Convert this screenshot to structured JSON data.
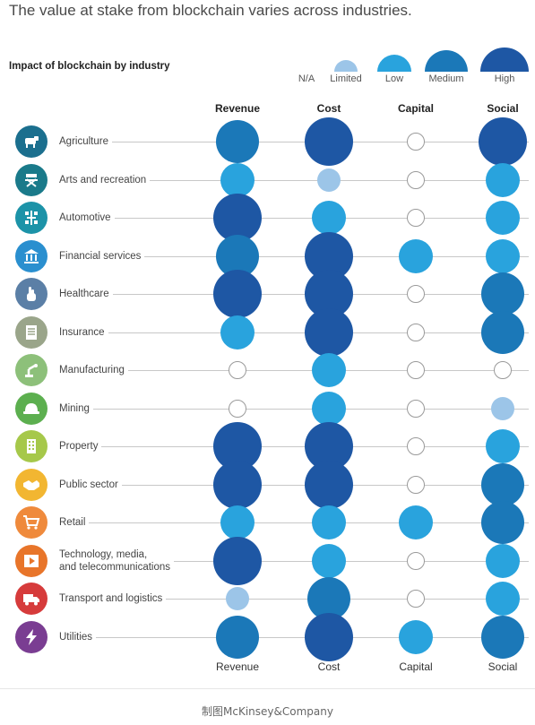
{
  "title": "The value at stake from blockchain varies across industries.",
  "subtitle": "Impact of blockchain by industry",
  "legend": [
    {
      "label": "N/A",
      "level": "na"
    },
    {
      "label": "Limited",
      "level": "limited"
    },
    {
      "label": "Low",
      "level": "low"
    },
    {
      "label": "Medium",
      "level": "medium"
    },
    {
      "label": "High",
      "level": "high"
    }
  ],
  "colors": {
    "na_fill": "#ffffff",
    "na_stroke": "#9a9a9a",
    "limited": "#9cc5e8",
    "low": "#29a3dd",
    "medium": "#1b78b8",
    "high": "#1e57a4"
  },
  "columns": [
    "Revenue",
    "Cost",
    "Capital",
    "Social"
  ],
  "industries": [
    {
      "name": "Agriculture",
      "icon": "cow-icon",
      "icon_color": "#1b6f8e"
    },
    {
      "name": "Arts and recreation",
      "icon": "directors-chair-icon",
      "icon_color": "#1a7a8a"
    },
    {
      "name": "Automotive",
      "icon": "chassis-icon",
      "icon_color": "#1c93a8"
    },
    {
      "name": "Financial services",
      "icon": "bank-icon",
      "icon_color": "#2a8fcf"
    },
    {
      "name": "Healthcare",
      "icon": "hand-icon",
      "icon_color": "#5b7fa6"
    },
    {
      "name": "Insurance",
      "icon": "document-icon",
      "icon_color": "#9aa58a"
    },
    {
      "name": "Manufacturing",
      "icon": "robot-arm-icon",
      "icon_color": "#8dc07a"
    },
    {
      "name": "Mining",
      "icon": "hard-hat-icon",
      "icon_color": "#5caf4f"
    },
    {
      "name": "Property",
      "icon": "building-icon",
      "icon_color": "#a6c84a"
    },
    {
      "name": "Public sector",
      "icon": "handshake-icon",
      "icon_color": "#f2b631"
    },
    {
      "name": "Retail",
      "icon": "cart-icon",
      "icon_color": "#ef8a3c"
    },
    {
      "name": "Technology, media,\nand telecommunications",
      "icon": "play-icon",
      "icon_color": "#e8752a"
    },
    {
      "name": "Transport and logistics",
      "icon": "truck-icon",
      "icon_color": "#d63b3b"
    },
    {
      "name": "Utilities",
      "icon": "lightning-icon",
      "icon_color": "#7a3d92"
    }
  ],
  "chart_data": {
    "type": "table",
    "title": "The value at stake from blockchain varies across industries.",
    "subtitle": "Impact of blockchain by industry",
    "columns": [
      "Revenue",
      "Cost",
      "Capital",
      "Social"
    ],
    "scale": [
      "N/A",
      "Limited",
      "Low",
      "Medium",
      "High"
    ],
    "rows": [
      {
        "industry": "Agriculture",
        "values": [
          "Medium",
          "High",
          "N/A",
          "High"
        ]
      },
      {
        "industry": "Arts and recreation",
        "values": [
          "Low",
          "Limited",
          "N/A",
          "Low"
        ]
      },
      {
        "industry": "Automotive",
        "values": [
          "High",
          "Low",
          "N/A",
          "Low"
        ]
      },
      {
        "industry": "Financial services",
        "values": [
          "Medium",
          "High",
          "Low",
          "Low"
        ]
      },
      {
        "industry": "Healthcare",
        "values": [
          "High",
          "High",
          "N/A",
          "Medium"
        ]
      },
      {
        "industry": "Insurance",
        "values": [
          "Low",
          "High",
          "N/A",
          "Medium"
        ]
      },
      {
        "industry": "Manufacturing",
        "values": [
          "N/A",
          "Low",
          "N/A",
          "N/A"
        ]
      },
      {
        "industry": "Mining",
        "values": [
          "N/A",
          "Low",
          "N/A",
          "Limited"
        ]
      },
      {
        "industry": "Property",
        "values": [
          "High",
          "High",
          "N/A",
          "Low"
        ]
      },
      {
        "industry": "Public sector",
        "values": [
          "High",
          "High",
          "N/A",
          "Medium"
        ]
      },
      {
        "industry": "Retail",
        "values": [
          "Low",
          "Low",
          "Low",
          "Medium"
        ]
      },
      {
        "industry": "Technology, media, and telecommunications",
        "values": [
          "High",
          "Low",
          "N/A",
          "Low"
        ]
      },
      {
        "industry": "Transport and logistics",
        "values": [
          "Limited",
          "Medium",
          "N/A",
          "Low"
        ]
      },
      {
        "industry": "Utilities",
        "values": [
          "Medium",
          "High",
          "Low",
          "Medium"
        ]
      }
    ]
  },
  "source": "制图McKinsey&Company"
}
